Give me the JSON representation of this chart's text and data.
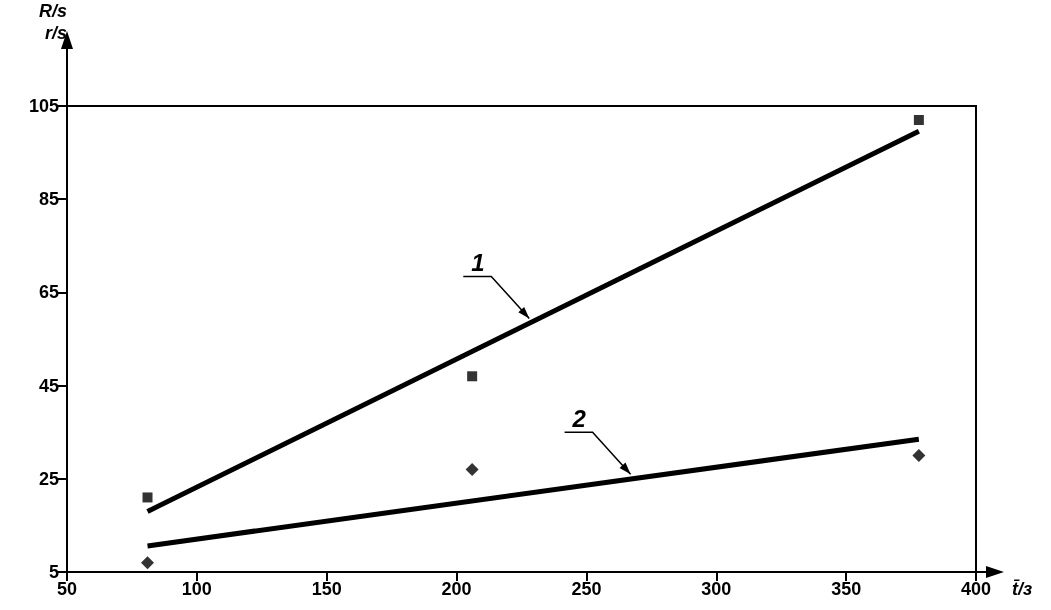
{
  "chart_data": {
    "type": "scatter",
    "xlabel": "t̄/з",
    "ylabel": "R/s\nr/s",
    "xlim": [
      50,
      400
    ],
    "xticks": [
      50,
      100,
      150,
      200,
      250,
      300,
      350,
      400
    ],
    "ylim": [
      5,
      105
    ],
    "yticks": [
      5,
      25,
      45,
      65,
      85,
      105
    ],
    "grid": false,
    "series": [
      {
        "marker": "square",
        "color": "#000000",
        "x": [
          81,
          206,
          378
        ],
        "values": [
          21,
          47,
          102
        ]
      },
      {
        "marker": "diamond",
        "color": "#000000",
        "x": [
          81,
          206,
          378
        ],
        "values": [
          7,
          27,
          30
        ]
      },
      {
        "type": "line",
        "marker": "none",
        "line_style": "solid",
        "color": "#000000",
        "x": [
          81,
          378
        ],
        "values": [
          18,
          99.6
        ]
      },
      {
        "type": "line",
        "marker": "none",
        "line_style": "solid",
        "color": "#000000",
        "x": [
          81,
          378
        ],
        "values": [
          10.6,
          33.5
        ]
      }
    ],
    "annotations": [
      {
        "text": "1",
        "x": 228,
        "y": 59.4
      },
      {
        "text": "2",
        "x": 267,
        "y": 26
      }
    ]
  }
}
